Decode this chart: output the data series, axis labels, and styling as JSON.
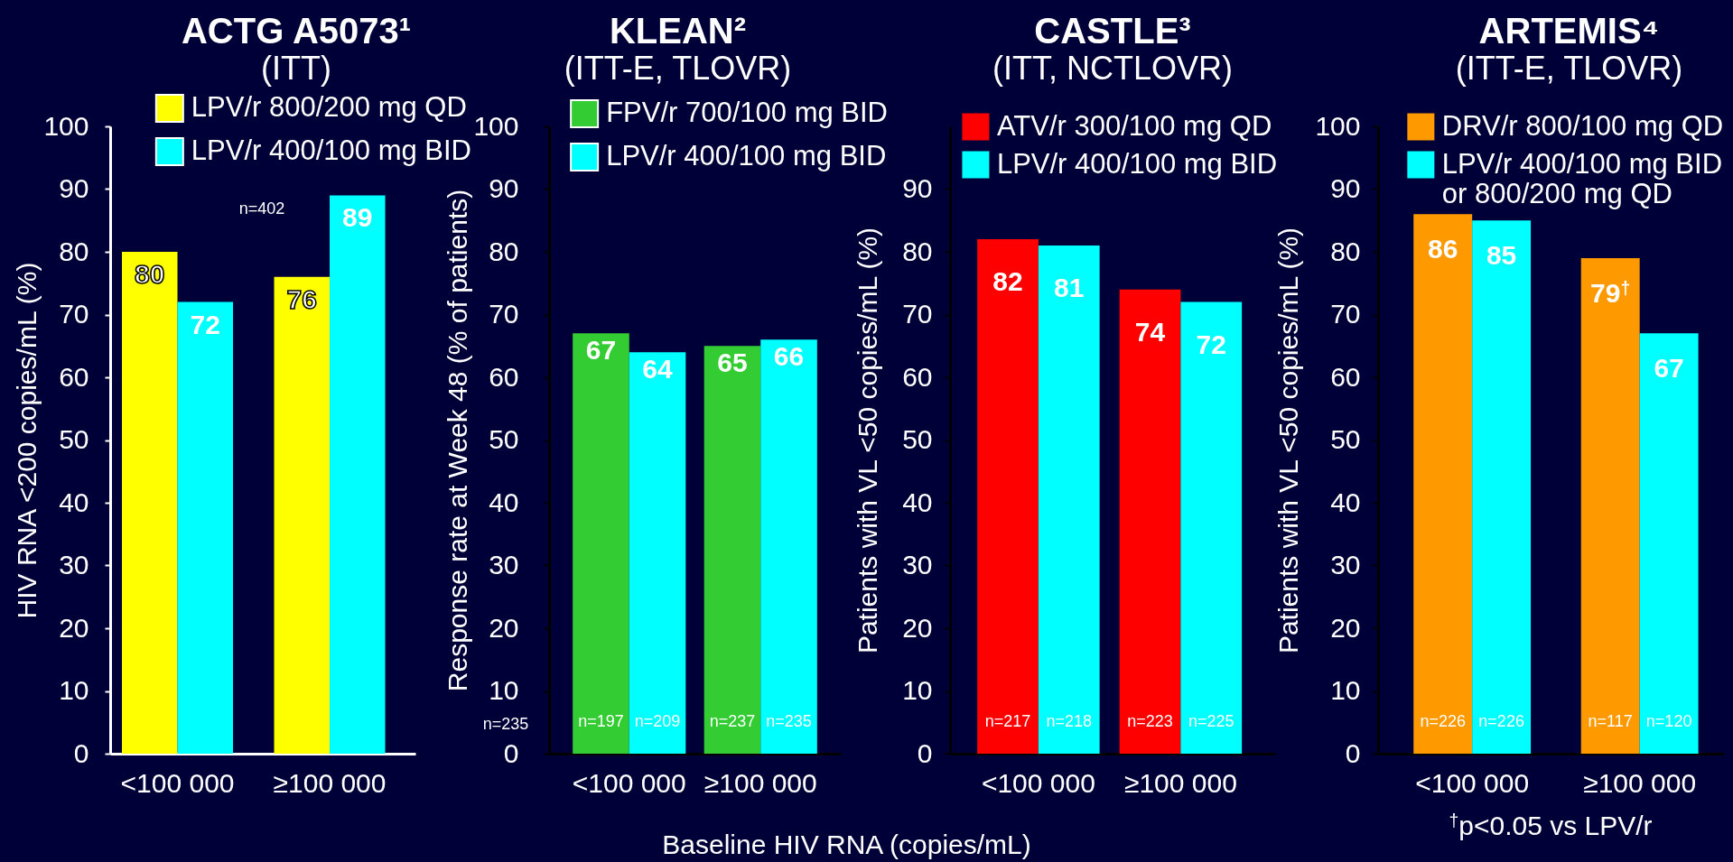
{
  "chart_data": [
    {
      "type": "bar",
      "title": "ACTG A5073¹",
      "subtitle": "(ITT)",
      "ylabel": "HIV RNA <200 copies/mL (%)",
      "categories": [
        "<100 000",
        "≥100 000"
      ],
      "series": [
        {
          "name": "LPV/r 800/200 mg QD",
          "color": "#ffff00",
          "values": [
            80,
            76
          ]
        },
        {
          "name": "LPV/r 400/100 mg BID",
          "color": "#00ffff",
          "values": [
            72,
            89
          ]
        }
      ],
      "ylim": [
        0,
        100
      ],
      "yticks": [
        0,
        10,
        20,
        30,
        40,
        50,
        60,
        70,
        80,
        90,
        100
      ],
      "data_labels": true,
      "legend": "top right",
      "annotations": [
        "n=402"
      ]
    },
    {
      "type": "bar",
      "title": "KLEAN²",
      "subtitle": "(ITT-E, TLOVR)",
      "xlabel": "Baseline HIV RNA (copies/mL)",
      "ylabel": "Response rate at Week 48 (% of patients)",
      "categories": [
        "<100 000",
        "≥100 000"
      ],
      "series": [
        {
          "name": "FPV/r 700/100 mg BID",
          "color": "#33cc33",
          "values": [
            67,
            65
          ]
        },
        {
          "name": "LPV/r 400/100 mg BID",
          "color": "#00ffff",
          "values": [
            64,
            66
          ]
        }
      ],
      "ylim": [
        0,
        100
      ],
      "yticks": [
        0,
        10,
        20,
        30,
        40,
        50,
        60,
        70,
        80,
        90,
        100
      ],
      "data_labels": true,
      "legend": "top right",
      "annotations": [
        "n=235",
        {
          "text": "n=197",
          "x": "<100 000",
          "y": 5
        },
        {
          "text": "n=209",
          "x": "<100 000",
          "y": 5
        },
        {
          "text": "n=237",
          "x": "≥100 000",
          "y": 5
        },
        {
          "text": "n=235",
          "x": "≥100 000",
          "y": 5
        }
      ]
    },
    {
      "type": "bar",
      "title": "CASTLE³",
      "subtitle": "(ITT, NCTLOVR)",
      "ylabel": "Patients with VL <50 copies/mL (%)",
      "categories": [
        "<100 000",
        "≥100 000"
      ],
      "series": [
        {
          "name": "ATV/r 300/100 mg QD",
          "color": "#ff0000",
          "values": [
            82,
            74
          ]
        },
        {
          "name": "LPV/r 400/100 mg BID",
          "color": "#00ffff",
          "values": [
            81,
            72
          ]
        }
      ],
      "ylim": [
        0,
        100
      ],
      "yticks": [
        0,
        10,
        20,
        30,
        40,
        50,
        60,
        70,
        80,
        90
      ],
      "data_labels": true,
      "legend": "top",
      "annotations": [
        {
          "text": "n=217",
          "x": "<100 000",
          "y": 5
        },
        {
          "text": "n=218",
          "x": "<100 000",
          "y": 5
        },
        {
          "text": "n=223",
          "x": "≥100 000",
          "y": 5
        },
        {
          "text": "n=225",
          "x": "≥100 000",
          "y": 5
        }
      ]
    },
    {
      "type": "bar",
      "title": "ARTEMIS⁴",
      "subtitle": "(ITT-E, TLOVR)",
      "ylabel": "Patients with VL <50 copies/mL (%)",
      "categories": [
        "<100 000",
        "≥100 000"
      ],
      "series": [
        {
          "name": "DRV/r 800/100 mg QD",
          "color": "#ff9900",
          "values": [
            86,
            79
          ],
          "value_labels": [
            "86",
            "79$^{†}$"
          ]
        },
        {
          "name": "LPV/r 400/100 mg BID or 800/200 mg QD",
          "color": "#00ffff",
          "values": [
            85,
            67
          ],
          "value_labels": [
            "85",
            "67"
          ]
        }
      ],
      "ylim": [
        0,
        100
      ],
      "yticks": [
        0,
        10,
        20,
        30,
        40,
        50,
        60,
        70,
        80,
        90,
        100
      ],
      "legend": "top",
      "annotations": [
        "$^{†}$p<0.05 vs LPV/r",
        {
          "text": "n=226",
          "x": "<100 000",
          "y": 5
        },
        {
          "text": "n=226",
          "x": "<100 000",
          "y": 5
        },
        {
          "text": "n=117",
          "x": "≥100 000",
          "y": 5
        },
        {
          "text": "n=120",
          "x": "≥100 000",
          "y": 5
        }
      ]
    }
  ]
}
